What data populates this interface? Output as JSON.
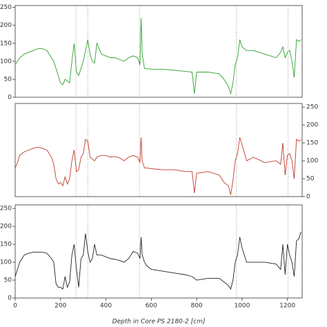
{
  "chart_data": [
    {
      "type": "line",
      "color": "#2ca02c",
      "ylim": [
        0,
        255
      ],
      "yticks": [
        0,
        50,
        100,
        150,
        200,
        250
      ],
      "y_axis_side": "left",
      "xlim": [
        0,
        1265
      ],
      "vlines": [
        268,
        320,
        548,
        975,
        1203
      ],
      "x": [
        0,
        10,
        20,
        40,
        60,
        80,
        100,
        120,
        140,
        160,
        170,
        180,
        190,
        200,
        210,
        220,
        230,
        240,
        250,
        260,
        270,
        280,
        290,
        300,
        310,
        320,
        330,
        340,
        350,
        360,
        380,
        400,
        420,
        440,
        460,
        480,
        500,
        520,
        540,
        550,
        555,
        560,
        570,
        580,
        600,
        650,
        700,
        750,
        780,
        790,
        800,
        850,
        900,
        920,
        940,
        950,
        960,
        970,
        980,
        990,
        1000,
        1020,
        1050,
        1100,
        1150,
        1170,
        1180,
        1190,
        1200,
        1210,
        1220,
        1230,
        1240,
        1250,
        1260
      ],
      "values": [
        90,
        100,
        110,
        120,
        125,
        130,
        135,
        135,
        130,
        110,
        100,
        80,
        60,
        40,
        35,
        50,
        45,
        40,
        100,
        150,
        70,
        60,
        80,
        100,
        130,
        160,
        120,
        100,
        95,
        150,
        120,
        115,
        110,
        110,
        105,
        100,
        110,
        115,
        110,
        90,
        220,
        120,
        80,
        80,
        78,
        78,
        75,
        72,
        70,
        10,
        70,
        70,
        65,
        50,
        30,
        10,
        40,
        90,
        110,
        160,
        140,
        130,
        130,
        120,
        110,
        125,
        140,
        110,
        125,
        130,
        100,
        55,
        160,
        155,
        160
      ]
    },
    {
      "type": "line",
      "color": "#c0392b",
      "ylim": [
        0,
        260
      ],
      "yticks": [
        0,
        50,
        100,
        150,
        200,
        250
      ],
      "y_axis_side": "right",
      "xlim": [
        0,
        1265
      ],
      "vlines": [
        268,
        320,
        548,
        975,
        1203
      ],
      "x": [
        0,
        10,
        20,
        40,
        60,
        80,
        100,
        120,
        140,
        160,
        170,
        180,
        190,
        200,
        210,
        220,
        230,
        240,
        250,
        260,
        270,
        280,
        290,
        300,
        310,
        320,
        330,
        340,
        350,
        360,
        380,
        400,
        420,
        440,
        460,
        480,
        500,
        520,
        540,
        550,
        555,
        560,
        570,
        580,
        600,
        650,
        700,
        750,
        780,
        790,
        800,
        850,
        900,
        920,
        940,
        950,
        960,
        970,
        980,
        990,
        1000,
        1020,
        1050,
        1100,
        1150,
        1170,
        1180,
        1190,
        1200,
        1210,
        1220,
        1230,
        1240,
        1250,
        1260
      ],
      "values": [
        80,
        95,
        115,
        125,
        130,
        135,
        138,
        135,
        130,
        110,
        90,
        50,
        35,
        40,
        30,
        55,
        35,
        50,
        100,
        130,
        70,
        75,
        110,
        120,
        160,
        155,
        110,
        105,
        100,
        110,
        115,
        115,
        110,
        112,
        108,
        100,
        110,
        115,
        110,
        95,
        165,
        100,
        80,
        80,
        78,
        75,
        75,
        70,
        70,
        10,
        65,
        70,
        60,
        40,
        30,
        5,
        45,
        100,
        120,
        165,
        145,
        100,
        110,
        95,
        100,
        90,
        150,
        60,
        115,
        120,
        100,
        50,
        160,
        155,
        158
      ]
    },
    {
      "type": "line",
      "color": "#222222",
      "ylim": [
        0,
        260
      ],
      "yticks": [
        0,
        50,
        100,
        150,
        200,
        250
      ],
      "y_axis_side": "left",
      "xlim": [
        0,
        1265
      ],
      "xticks": [
        0,
        200,
        400,
        600,
        800,
        1000,
        1200
      ],
      "vlines": [
        268,
        320,
        548,
        975,
        1203
      ],
      "x_label": "Depth in Core PS 2180-2  [cm]",
      "x": [
        0,
        10,
        20,
        40,
        60,
        80,
        100,
        120,
        140,
        160,
        170,
        180,
        190,
        200,
        210,
        220,
        230,
        240,
        250,
        260,
        270,
        280,
        290,
        300,
        310,
        320,
        330,
        340,
        350,
        360,
        380,
        400,
        420,
        440,
        460,
        480,
        500,
        520,
        540,
        550,
        555,
        560,
        570,
        580,
        600,
        650,
        700,
        750,
        780,
        790,
        800,
        850,
        900,
        920,
        940,
        950,
        960,
        970,
        980,
        990,
        1000,
        1020,
        1050,
        1100,
        1150,
        1170,
        1180,
        1190,
        1200,
        1210,
        1220,
        1230,
        1240,
        1250,
        1260
      ],
      "values": [
        60,
        80,
        100,
        120,
        125,
        128,
        128,
        128,
        125,
        110,
        100,
        40,
        30,
        30,
        25,
        60,
        30,
        45,
        120,
        150,
        80,
        30,
        110,
        120,
        180,
        130,
        100,
        110,
        150,
        120,
        120,
        115,
        110,
        108,
        105,
        100,
        110,
        130,
        125,
        110,
        170,
        120,
        100,
        90,
        80,
        75,
        70,
        65,
        60,
        55,
        50,
        55,
        55,
        45,
        35,
        25,
        50,
        100,
        120,
        170,
        140,
        100,
        100,
        100,
        95,
        80,
        150,
        65,
        150,
        120,
        100,
        60,
        160,
        165,
        185
      ]
    }
  ]
}
